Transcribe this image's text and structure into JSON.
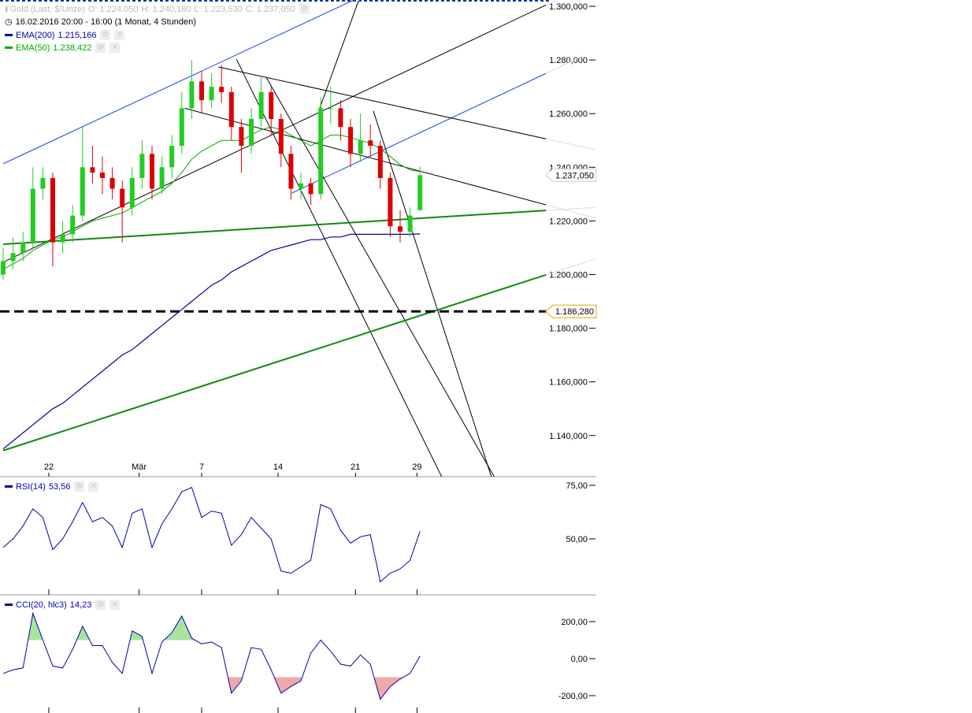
{
  "header": {
    "instrument": "Gold (Last, $/Unze)",
    "open": "O: 1.224,050",
    "high": "H: 1.240,180",
    "low": "L: 1.223,530",
    "close": "C: 1.237,050",
    "period": "16.02.2016 20:00 - 16:00 (1 Monat, 4 Stunden)"
  },
  "indicators": [
    {
      "label": "EMA(200)",
      "value": "1.215,166",
      "color": "#0000aa"
    },
    {
      "label": "EMA(50)",
      "value": "1.238,422",
      "color": "#00aa00"
    }
  ],
  "rsi_legend": {
    "label": "RSI(14)",
    "value": "53,56",
    "color": "#0000aa"
  },
  "cci_legend": {
    "label": "CCI(20, hlc3)",
    "value": "14,23",
    "color": "#0000aa"
  },
  "colors": {
    "up": "#22cc22",
    "down": "#dd0000",
    "ema200": "#0000aa",
    "ema50": "#00aa00",
    "channel": "#1a3cff",
    "trend": "#000000",
    "support": "#118811",
    "cci_up_fill": "#a8e4a0",
    "cci_down_fill": "#eeaaaa"
  },
  "chart_data": [
    {
      "type": "candlestick",
      "title": "Gold (Last, $/Unze)",
      "ylim": [
        1130,
        1302
      ],
      "y_ticks": [
        "1.300,000",
        "1.280,000",
        "1.260,000",
        "1.240,000",
        "1.220,000",
        "1.200,000",
        "1.180,000",
        "1.160,000",
        "1.140,000"
      ],
      "y_tick_values": [
        1300,
        1280,
        1260,
        1240,
        1220,
        1200,
        1180,
        1160,
        1140
      ],
      "x_ticks": [
        {
          "label": "22",
          "candle": 4.6
        },
        {
          "label": "Mär",
          "candle": 13.7
        },
        {
          "label": "7",
          "candle": 20
        },
        {
          "label": "14",
          "candle": 27.7
        },
        {
          "label": "21",
          "candle": 35.5
        },
        {
          "label": "29",
          "candle": 41.7
        }
      ],
      "candles": [
        [
          1200,
          1210,
          1198,
          1205
        ],
        [
          1205,
          1214,
          1202,
          1208
        ],
        [
          1208,
          1216,
          1205,
          1212
        ],
        [
          1212,
          1240,
          1210,
          1232
        ],
        [
          1232,
          1240,
          1228,
          1236
        ],
        [
          1236,
          1238,
          1203,
          1212
        ],
        [
          1212,
          1220,
          1208,
          1215
        ],
        [
          1215,
          1226,
          1212,
          1222
        ],
        [
          1222,
          1255,
          1220,
          1240
        ],
        [
          1240,
          1248,
          1234,
          1238
        ],
        [
          1238,
          1244,
          1230,
          1236
        ],
        [
          1236,
          1240,
          1228,
          1232
        ],
        [
          1232,
          1235,
          1212,
          1225
        ],
        [
          1225,
          1240,
          1222,
          1236
        ],
        [
          1236,
          1250,
          1232,
          1245
        ],
        [
          1245,
          1248,
          1228,
          1232
        ],
        [
          1232,
          1244,
          1230,
          1240
        ],
        [
          1240,
          1252,
          1236,
          1248
        ],
        [
          1248,
          1268,
          1245,
          1262
        ],
        [
          1262,
          1280,
          1258,
          1272
        ],
        [
          1272,
          1276,
          1260,
          1265
        ],
        [
          1265,
          1275,
          1262,
          1270
        ],
        [
          1270,
          1278,
          1264,
          1268
        ],
        [
          1268,
          1270,
          1250,
          1255
        ],
        [
          1255,
          1258,
          1238,
          1248
        ],
        [
          1248,
          1262,
          1245,
          1258
        ],
        [
          1258,
          1274,
          1255,
          1268
        ],
        [
          1268,
          1270,
          1252,
          1258
        ],
        [
          1258,
          1260,
          1240,
          1245
        ],
        [
          1245,
          1248,
          1228,
          1232
        ],
        [
          1232,
          1238,
          1228,
          1234
        ],
        [
          1234,
          1236,
          1226,
          1230
        ],
        [
          1230,
          1266,
          1228,
          1262
        ],
        [
          1262,
          1270,
          1256,
          1262
        ],
        [
          1262,
          1265,
          1250,
          1255
        ],
        [
          1255,
          1258,
          1240,
          1245
        ],
        [
          1245,
          1260,
          1242,
          1250
        ],
        [
          1250,
          1256,
          1244,
          1248
        ],
        [
          1248,
          1250,
          1232,
          1236
        ],
        [
          1236,
          1238,
          1214,
          1218
        ],
        [
          1218,
          1224,
          1212,
          1216
        ],
        [
          1216,
          1225,
          1214,
          1222
        ],
        [
          1224.05,
          1240.18,
          1223.53,
          1237.05
        ]
      ],
      "ema200": [
        1135,
        1138,
        1141,
        1144,
        1147,
        1150,
        1152,
        1155,
        1158,
        1161,
        1164,
        1167,
        1170,
        1172,
        1175,
        1178,
        1181,
        1184,
        1187,
        1190,
        1193,
        1196,
        1198,
        1201,
        1203,
        1205,
        1207,
        1209,
        1210,
        1211,
        1212,
        1213,
        1213,
        1214,
        1214,
        1215,
        1215,
        1215,
        1215,
        1215,
        1215,
        1215,
        1215.166
      ],
      "ema50": [
        1202,
        1204,
        1206,
        1209,
        1211,
        1213,
        1214,
        1216,
        1218,
        1220,
        1221,
        1222,
        1223,
        1225,
        1227,
        1229,
        1231,
        1234,
        1238,
        1243,
        1246,
        1248,
        1250,
        1250,
        1250,
        1252,
        1254,
        1255,
        1254,
        1252,
        1250,
        1248,
        1250,
        1252,
        1252,
        1251,
        1250,
        1249,
        1247,
        1244,
        1241,
        1239,
        1238.422
      ],
      "lines": [
        {
          "kind": "channel",
          "from": [
            0,
            1241.3
          ],
          "to": [
            35.3,
            1302.3
          ]
        },
        {
          "kind": "channel",
          "from": [
            29.1,
            1230.4
          ],
          "to": [
            54.7,
            1275
          ]
        },
        {
          "kind": "trend",
          "from": [
            0,
            1204.6
          ],
          "to": [
            54.7,
            1300.5
          ]
        },
        {
          "kind": "trend",
          "from": [
            21.7,
            1277.4
          ],
          "to": [
            54.7,
            1250.6
          ]
        },
        {
          "kind": "trend",
          "from": [
            18.3,
            1262
          ],
          "to": [
            54.7,
            1226
          ]
        },
        {
          "kind": "trend",
          "from": [
            23.5,
            1280.3
          ],
          "to": [
            44.2,
            1124.5
          ]
        },
        {
          "kind": "trend",
          "from": [
            26.5,
            1273.6
          ],
          "to": [
            49.5,
            1124.5
          ]
        },
        {
          "kind": "trend",
          "from": [
            31.9,
            1262
          ],
          "to": [
            35.8,
            1302
          ]
        },
        {
          "kind": "trend",
          "from": [
            37.3,
            1261
          ],
          "to": [
            49.2,
            1124.5
          ]
        },
        {
          "kind": "support",
          "from": [
            0,
            1211.3
          ],
          "to": [
            54.7,
            1223.9
          ]
        },
        {
          "kind": "support",
          "from": [
            0,
            1134.4
          ],
          "to": [
            54.7,
            1199.9
          ]
        }
      ],
      "horizontal_level": {
        "value": 1186.28,
        "label": "1.186,280",
        "style": "dashed"
      },
      "last_price_label": "1.237,050"
    },
    {
      "type": "line",
      "title": "RSI(14)",
      "ylim": [
        22,
        79
      ],
      "y_ticks": [
        "75,00",
        "50,00"
      ],
      "y_tick_values": [
        75,
        50
      ],
      "values": [
        46,
        50,
        56,
        64,
        60,
        45,
        50,
        58,
        67,
        58,
        60,
        56,
        46,
        62,
        64,
        46,
        57,
        64,
        72,
        74,
        60,
        63,
        62,
        47,
        52,
        60,
        55,
        50,
        35,
        34,
        37,
        40,
        66,
        64,
        54,
        48,
        51,
        52,
        30,
        34,
        36,
        40,
        53.56
      ]
    },
    {
      "type": "line",
      "title": "CCI(20, hlc3)",
      "ylim": [
        -300,
        310
      ],
      "y_ticks": [
        "200,00",
        "0,00",
        "-200,00"
      ],
      "y_tick_values": [
        200,
        0,
        -200
      ],
      "fill_thresholds": [
        100,
        -100
      ],
      "values": [
        -80,
        -60,
        -50,
        245,
        100,
        -40,
        -50,
        50,
        175,
        70,
        70,
        -20,
        -80,
        150,
        120,
        -80,
        90,
        140,
        230,
        110,
        80,
        90,
        60,
        -187,
        -120,
        60,
        50,
        -60,
        -187,
        -150,
        -120,
        30,
        100,
        40,
        -30,
        -40,
        20,
        -30,
        -220,
        -150,
        -110,
        -80,
        14.23
      ]
    }
  ]
}
